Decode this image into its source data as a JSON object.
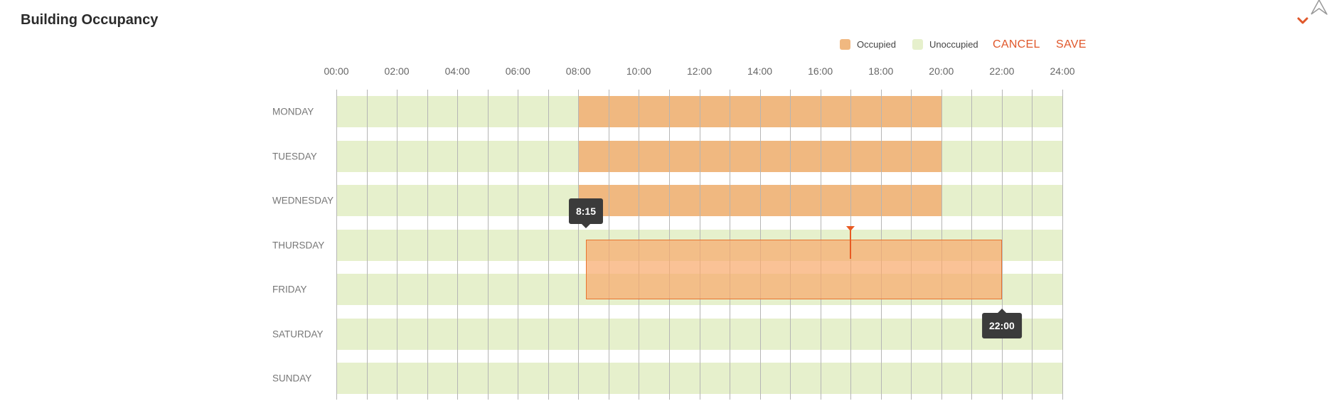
{
  "header": {
    "title": "Building Occupancy",
    "collapse_icon": "chevron-down-icon",
    "accent_color": "#e0572a"
  },
  "legend": {
    "occupied_label": "Occupied",
    "occupied_color": "#f0b880",
    "unoccupied_label": "Unoccupied",
    "unoccupied_color": "#e6f0cc"
  },
  "actions": {
    "cancel_label": "CANCEL",
    "save_label": "SAVE"
  },
  "schedule": {
    "hour_labels": [
      "00:00",
      "02:00",
      "04:00",
      "06:00",
      "08:00",
      "10:00",
      "12:00",
      "14:00",
      "16:00",
      "18:00",
      "20:00",
      "22:00",
      "24:00"
    ],
    "days": [
      {
        "label": "MONDAY",
        "occupied": [
          8,
          20
        ]
      },
      {
        "label": "TUESDAY",
        "occupied": [
          8,
          20
        ]
      },
      {
        "label": "WEDNESDAY",
        "occupied": [
          8,
          20
        ]
      },
      {
        "label": "THURSDAY",
        "occupied": null
      },
      {
        "label": "FRIDAY",
        "occupied": null
      },
      {
        "label": "SATURDAY",
        "occupied": null
      },
      {
        "label": "SUNDAY",
        "occupied": null
      }
    ],
    "selection": {
      "start_hour": 8.25,
      "end_hour": 22,
      "days": [
        "THURSDAY",
        "FRIDAY"
      ],
      "start_tooltip": "8:15",
      "end_tooltip": "22:00",
      "cursor_hour": 17
    }
  }
}
